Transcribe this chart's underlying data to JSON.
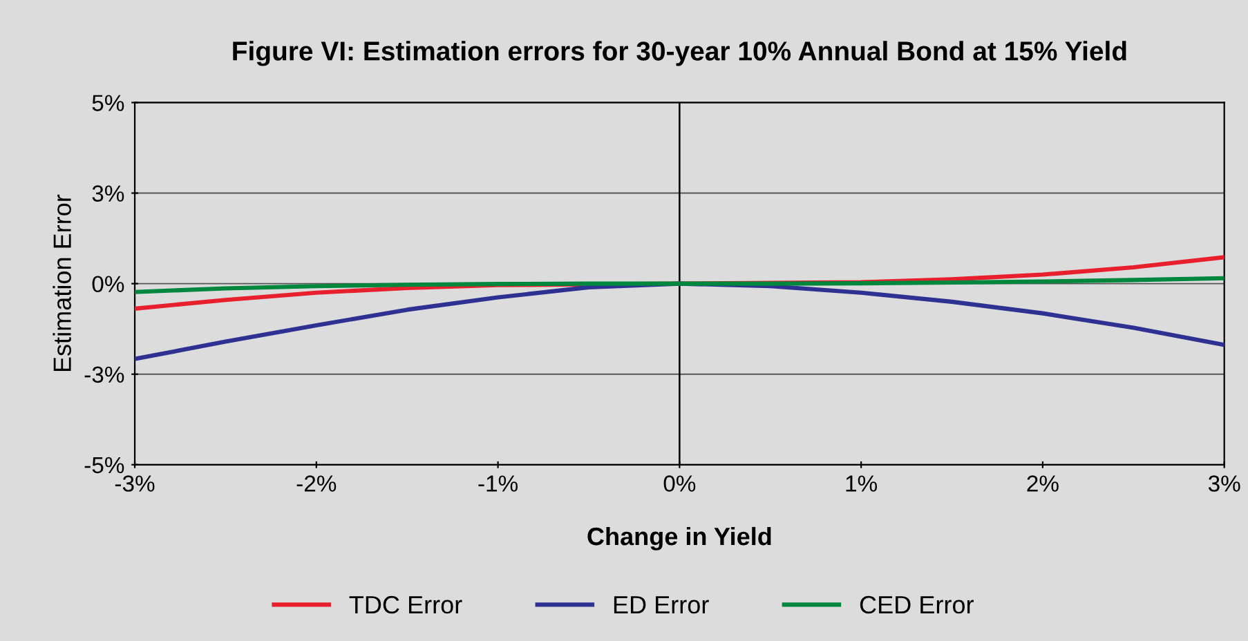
{
  "chart_data": {
    "type": "line",
    "title": "Figure VI: Estimation errors for 30-year 10% Annual Bond at 15% Yield",
    "xlabel": "Change in Yield",
    "ylabel": "Estimation Error",
    "x": [
      -3,
      -2.5,
      -2,
      -1.5,
      -1,
      -0.5,
      0,
      0.5,
      1,
      1.5,
      2,
      2.5,
      3
    ],
    "series": [
      {
        "name": "TDC Error",
        "color": "#e8202e",
        "x": [
          -3,
          -2.5,
          -2,
          -1.5,
          -1,
          0,
          1,
          1.5,
          2,
          2.5,
          3
        ],
        "values": [
          -0.69,
          -0.45,
          -0.25,
          -0.12,
          -0.04,
          0,
          0.04,
          0.12,
          0.25,
          0.45,
          0.73
        ]
      },
      {
        "name": "ED Error",
        "color": "#2e3192",
        "values": [
          -2.08,
          -1.6,
          -1.15,
          -0.72,
          -0.38,
          -0.1,
          0,
          -0.07,
          -0.25,
          -0.5,
          -0.82,
          -1.22,
          -1.69
        ]
      },
      {
        "name": "CED Error",
        "color": "#00873e",
        "values": [
          -0.23,
          -0.13,
          -0.07,
          -0.03,
          -0.01,
          0,
          0,
          0,
          0.01,
          0.03,
          0.06,
          0.1,
          0.15
        ]
      }
    ],
    "xlim": [
      -3,
      3
    ],
    "ylim": [
      -5,
      5
    ],
    "xticks": [
      {
        "value": -3,
        "label": "-3%"
      },
      {
        "value": -2,
        "label": "-2%"
      },
      {
        "value": -1,
        "label": "-1%"
      },
      {
        "value": 0,
        "label": "0%"
      },
      {
        "value": 1,
        "label": "1%"
      },
      {
        "value": 2,
        "label": "2%"
      },
      {
        "value": 3,
        "label": "3%"
      }
    ],
    "yticks": [
      {
        "value": -5,
        "label": "-5%"
      },
      {
        "value": -2.5,
        "label": "-3%"
      },
      {
        "value": 0,
        "label": "0%"
      },
      {
        "value": 2.5,
        "label": "3%"
      },
      {
        "value": 5,
        "label": "5%"
      }
    ],
    "ref_lines": [
      {
        "axis": "x",
        "value": 0,
        "color": "#000000"
      }
    ],
    "grid": "y",
    "legend": "bottom",
    "marker": "none",
    "line_style": "solid"
  }
}
